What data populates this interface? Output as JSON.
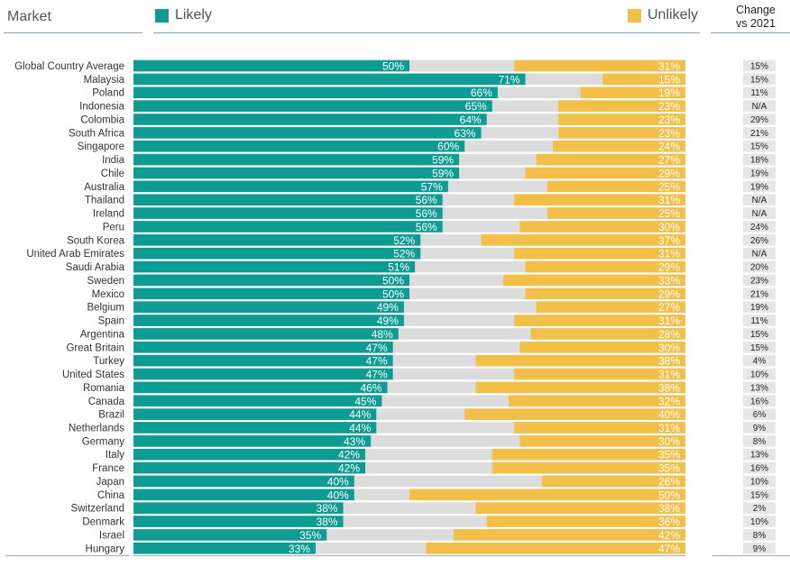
{
  "header": {
    "market_label": "Market",
    "likely_label": "Likely",
    "unlikely_label": "Unlikely",
    "change_line1": "Change",
    "change_line2": "vs 2021"
  },
  "colors": {
    "likely": "#0d9b93",
    "unlikely": "#f2bf48",
    "neutral": "#dcdcdc",
    "change_bg": "#e6e6e6"
  },
  "chart_data": {
    "type": "bar",
    "orientation": "horizontal",
    "stacked": true,
    "xlim": [
      0,
      100
    ],
    "categories": [
      "Global Country Average",
      "Malaysia",
      "Poland",
      "Indonesia",
      "Colombia",
      "South Africa",
      "Singapore",
      "India",
      "Chile",
      "Australia",
      "Thailand",
      "Ireland",
      "Peru",
      "South Korea",
      "United Arab Emirates",
      "Saudi Arabia",
      "Sweden",
      "Mexico",
      "Belgium",
      "Spain",
      "Argentina",
      "Great Britain",
      "Turkey",
      "United States",
      "Romania",
      "Canada",
      "Brazil",
      "Netherlands",
      "Germany",
      "Italy",
      "France",
      "Japan",
      "China",
      "Switzerland",
      "Denmark",
      "Israel",
      "Hungary"
    ],
    "series": [
      {
        "name": "Likely",
        "values": [
          50,
          71,
          66,
          65,
          64,
          63,
          60,
          59,
          59,
          57,
          56,
          56,
          56,
          52,
          52,
          51,
          50,
          50,
          49,
          49,
          48,
          47,
          47,
          47,
          46,
          45,
          44,
          44,
          43,
          42,
          42,
          40,
          40,
          38,
          38,
          35,
          33
        ]
      },
      {
        "name": "Unlikely",
        "values": [
          31,
          15,
          19,
          23,
          23,
          23,
          24,
          27,
          29,
          25,
          31,
          25,
          30,
          37,
          31,
          29,
          33,
          29,
          27,
          31,
          28,
          30,
          38,
          31,
          38,
          32,
          40,
          31,
          30,
          35,
          35,
          26,
          50,
          38,
          36,
          42,
          47
        ]
      }
    ],
    "change_vs_2021": [
      "15%",
      "15%",
      "11%",
      "N/A",
      "29%",
      "21%",
      "15%",
      "18%",
      "19%",
      "19%",
      "N/A",
      "N/A",
      "24%",
      "26%",
      "N/A",
      "20%",
      "23%",
      "21%",
      "19%",
      "11%",
      "15%",
      "15%",
      "4%",
      "10%",
      "13%",
      "16%",
      "6%",
      "9%",
      "8%",
      "13%",
      "16%",
      "10%",
      "15%",
      "2%",
      "10%",
      "8%",
      "9%"
    ]
  }
}
